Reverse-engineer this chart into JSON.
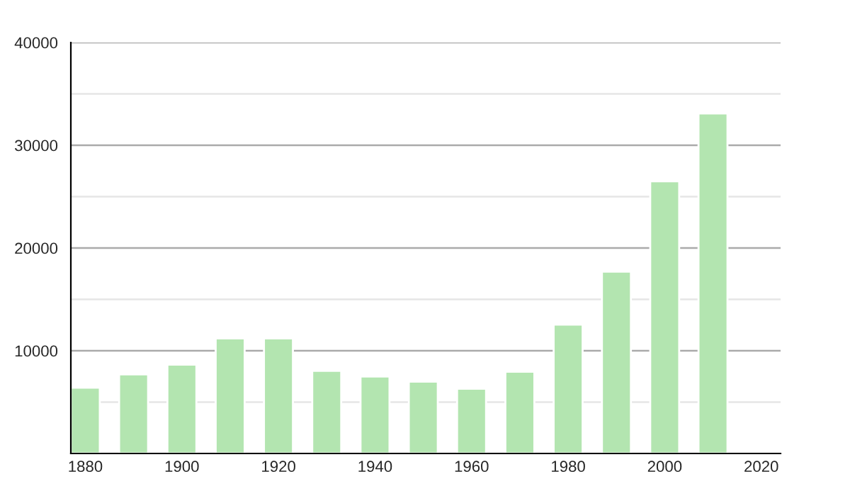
{
  "chart_data": {
    "type": "bar",
    "x": [
      1880,
      1890,
      1900,
      1910,
      1920,
      1930,
      1940,
      1950,
      1960,
      1970,
      1980,
      1990,
      2000,
      2010
    ],
    "values": [
      6400,
      7700,
      8650,
      11200,
      11200,
      8050,
      7500,
      7000,
      6300,
      7950,
      12550,
      17700,
      26500,
      33100
    ],
    "color": "#b3e5b0",
    "xlim": [
      1877,
      2024
    ],
    "xticks": [
      1880,
      1900,
      1920,
      1940,
      1960,
      1980,
      2000,
      2020
    ],
    "ylim": [
      0,
      40000
    ],
    "yticks": [
      {
        "value": 0,
        "label": null
      },
      {
        "value": 5000,
        "label": null
      },
      10000,
      {
        "value": 15000,
        "label": null
      },
      20000,
      {
        "value": 25000,
        "label": null
      },
      30000,
      {
        "value": 35000,
        "label": null
      },
      40000
    ],
    "grid": "y"
  }
}
